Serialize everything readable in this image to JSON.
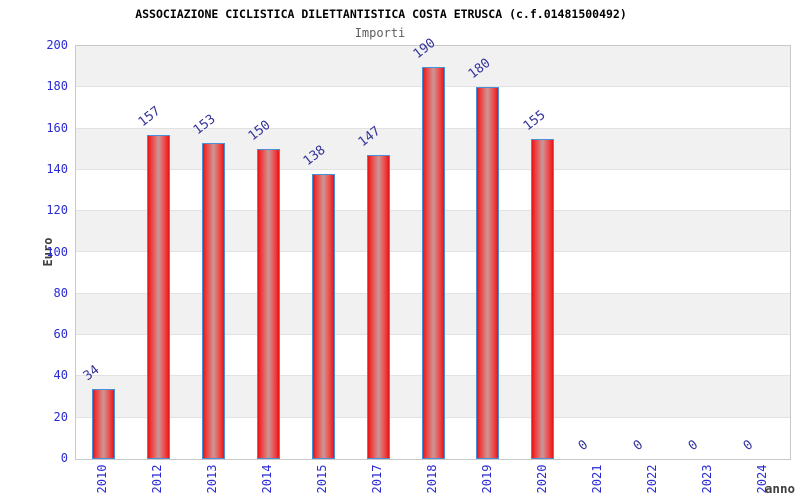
{
  "chart_data": {
    "type": "bar",
    "title": "ASSOCIAZIONE CICLISTICA DILETTANTISTICA COSTA ETRUSCA (c.f.01481500492)",
    "subtitle": "Importi",
    "xlabel": "anno",
    "ylabel": "Euro",
    "categories": [
      "2010",
      "2012",
      "2013",
      "2014",
      "2015",
      "2017",
      "2018",
      "2019",
      "2020",
      "2021",
      "2022",
      "2023",
      "2024"
    ],
    "values": [
      34,
      157,
      153,
      150,
      138,
      147,
      190,
      180,
      155,
      0,
      0,
      0,
      0
    ],
    "ylim": [
      0,
      200
    ],
    "ytick_step": 20,
    "ytick_labels": [
      "0",
      "20",
      "40",
      "60",
      "80",
      "100",
      "120",
      "140",
      "160",
      "180",
      "200"
    ],
    "grid": true,
    "legend": "none",
    "plot_bands_alternating": true,
    "colors": {
      "bar_edge": "#e31414",
      "bar_center": "#c39a9a",
      "bar_border": "#4a90d9",
      "value_label": "#333399",
      "axis_text": "#2a2ad4",
      "band_fill": "#f1f1f1",
      "grid_line": "#e2e2e2",
      "title_text": "#000000",
      "subtitle_text": "#606060",
      "axis_title_text": "#3f3f3f"
    }
  }
}
